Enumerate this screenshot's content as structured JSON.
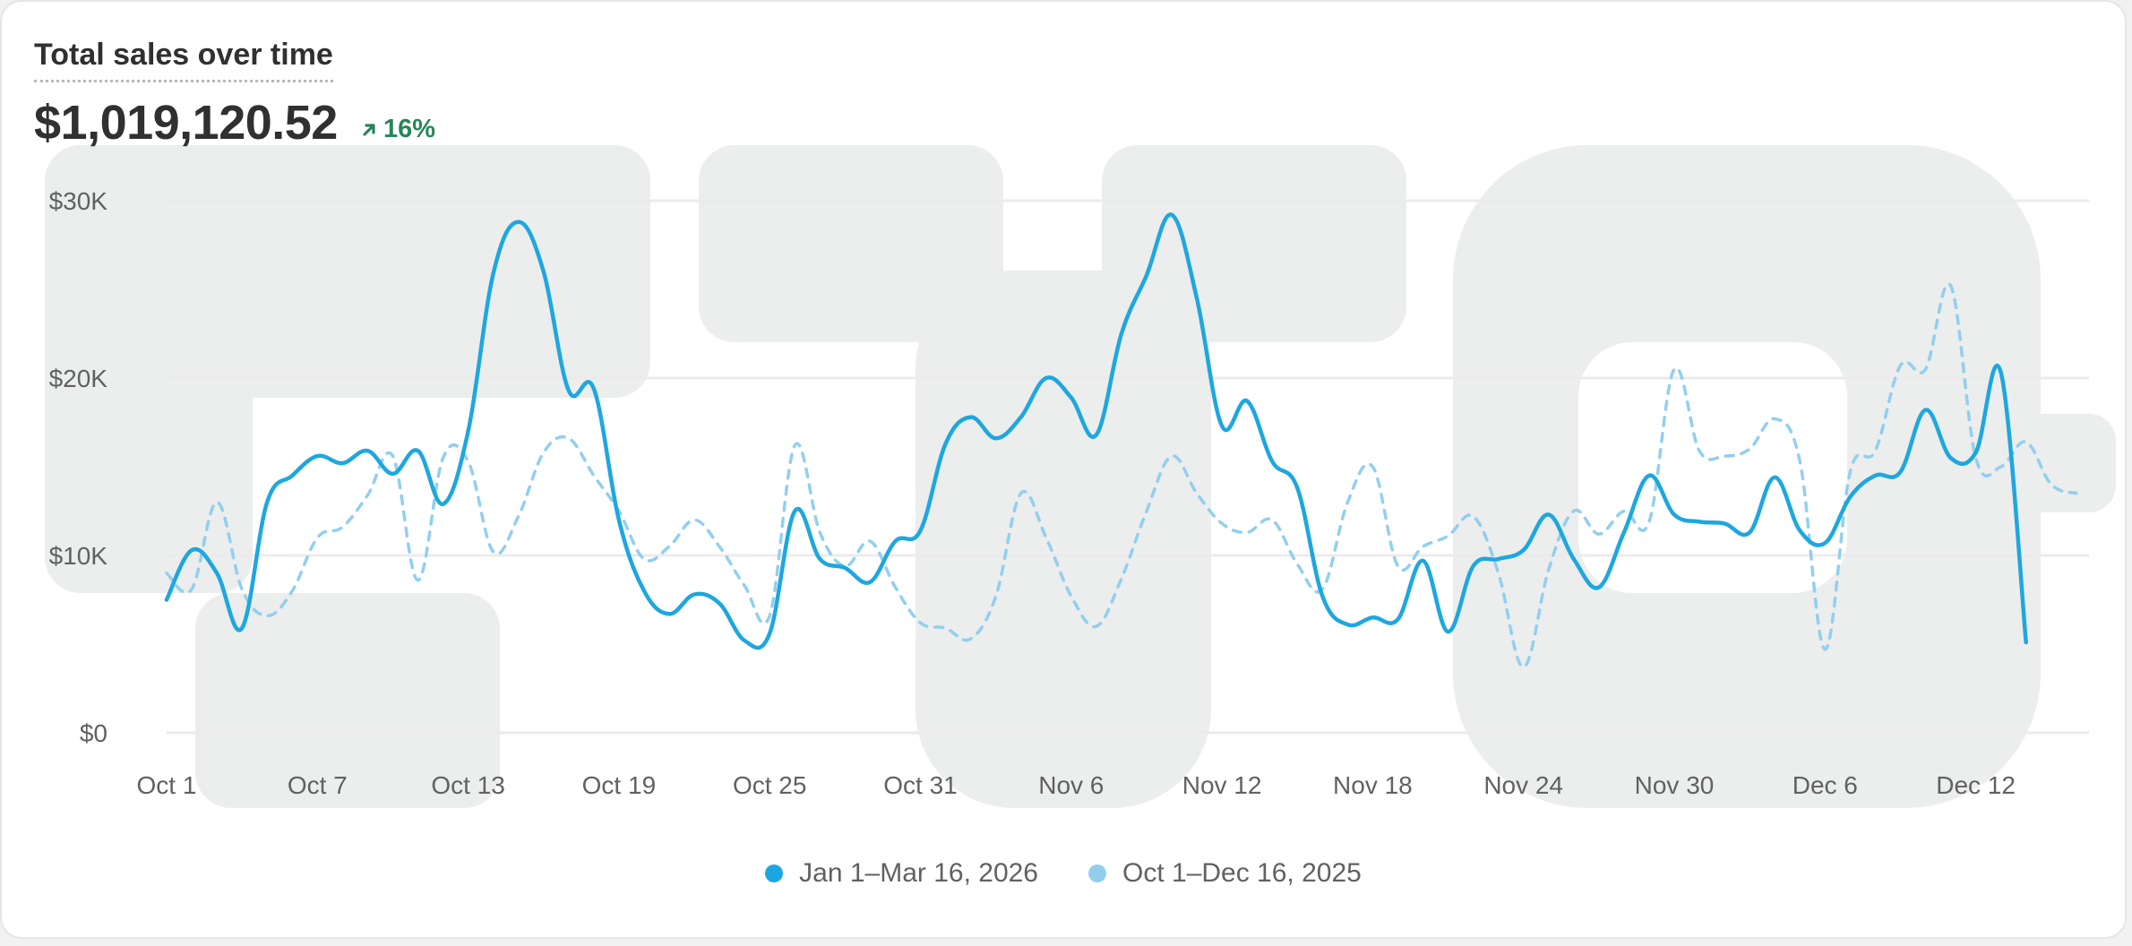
{
  "header": {
    "title": "Total sales over time",
    "total": "$1,019,120.52",
    "change": "16%"
  },
  "colors": {
    "primary": "#1ea7df",
    "comparison": "#92cfee",
    "grid": "#ebebeb",
    "positive": "#29845a",
    "watermark": "#eceded"
  },
  "legend": {
    "current": "Jan 1–Mar 16, 2026",
    "previous": "Oct 1–Dec 16, 2025"
  },
  "chart_data": {
    "type": "line",
    "title": "Total sales over time",
    "xlabel": "",
    "ylabel": "",
    "ylim": [
      0,
      30000
    ],
    "y_ticks": [
      {
        "value": 0,
        "label": "$0"
      },
      {
        "value": 10000,
        "label": "$10K"
      },
      {
        "value": 20000,
        "label": "$20K"
      },
      {
        "value": 30000,
        "label": "$30K"
      }
    ],
    "x_ticks": [
      {
        "index": 0,
        "label": "Oct 1"
      },
      {
        "index": 6,
        "label": "Oct 7"
      },
      {
        "index": 12,
        "label": "Oct 13"
      },
      {
        "index": 18,
        "label": "Oct 19"
      },
      {
        "index": 24,
        "label": "Oct 25"
      },
      {
        "index": 30,
        "label": "Oct 31"
      },
      {
        "index": 36,
        "label": "Nov 6"
      },
      {
        "index": 42,
        "label": "Nov 12"
      },
      {
        "index": 48,
        "label": "Nov 18"
      },
      {
        "index": 54,
        "label": "Nov 24"
      },
      {
        "index": 60,
        "label": "Nov 30"
      },
      {
        "index": 66,
        "label": "Dec 6"
      },
      {
        "index": 72,
        "label": "Dec 12"
      }
    ],
    "x_domain": [
      0,
      76
    ],
    "series": [
      {
        "name": "Jan 1–Mar 16, 2026",
        "style": "solid",
        "values": [
          7500,
          10300,
          9000,
          5900,
          13000,
          14500,
          15600,
          15200,
          15900,
          14600,
          15900,
          12900,
          17000,
          25900,
          28800,
          26000,
          19300,
          19400,
          12000,
          8000,
          6700,
          7800,
          7300,
          5200,
          5600,
          12500,
          9800,
          9300,
          8500,
          10800,
          11400,
          16300,
          17800,
          16600,
          17800,
          20000,
          18900,
          16800,
          22500,
          25800,
          29200,
          24500,
          17300,
          18700,
          15300,
          13800,
          7700,
          6100,
          6500,
          6400,
          9700,
          5700,
          9400,
          9800,
          10300,
          12300,
          9800,
          8200,
          11300,
          14500,
          12300,
          11900,
          11800,
          11300,
          14400,
          11400,
          10700,
          13300,
          14500,
          14700,
          18200,
          15500,
          15800,
          20300,
          5100
        ]
      },
      {
        "name": "Oct 1–Dec 16, 2025",
        "style": "dashed",
        "values": [
          9000,
          8100,
          13000,
          8100,
          6600,
          8000,
          11000,
          11600,
          13400,
          15600,
          8600,
          15500,
          15300,
          10200,
          12200,
          15800,
          16600,
          14500,
          12500,
          9800,
          10500,
          12000,
          10500,
          8300,
          6600,
          16200,
          11300,
          9400,
          10800,
          8200,
          6200,
          5900,
          5300,
          7700,
          13500,
          11000,
          7700,
          6000,
          8700,
          12500,
          15600,
          13500,
          11800,
          11300,
          12000,
          9500,
          8100,
          13000,
          15000,
          9400,
          10500,
          11100,
          12200,
          9000,
          3700,
          9200,
          12500,
          11200,
          12500,
          11900,
          20500,
          15900,
          15600,
          16000,
          17700,
          15300,
          4700,
          14700,
          15900,
          20700,
          20500,
          25200,
          15500,
          15000,
          16400,
          14000,
          13500
        ]
      }
    ]
  }
}
